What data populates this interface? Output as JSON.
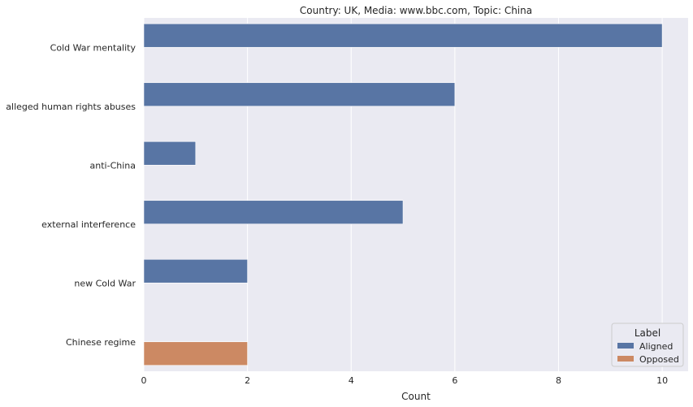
{
  "chart_data": {
    "type": "bar",
    "orientation": "horizontal",
    "title": "Country: UK, Media: www.bbc.com, Topic: China",
    "xlabel": "Count",
    "ylabel": "",
    "xlim": [
      0,
      10.5
    ],
    "xticks": [
      0,
      2,
      4,
      6,
      8,
      10
    ],
    "grid": true,
    "categories": [
      "Cold War mentality",
      "alleged human rights abuses",
      "anti-China",
      "external interference",
      "new Cold War",
      "Chinese regime"
    ],
    "series": [
      {
        "name": "Aligned",
        "color": "#5875a4",
        "values": [
          10,
          6,
          1,
          5,
          2,
          0
        ]
      },
      {
        "name": "Opposed",
        "color": "#cc8963",
        "values": [
          0,
          0,
          0,
          0,
          0,
          2
        ]
      }
    ],
    "legend": {
      "title": "Label",
      "position": "bottom-right",
      "entries": [
        "Aligned",
        "Opposed"
      ]
    },
    "colors": {
      "background": "#eaeaf2",
      "grid": "#ffffff"
    }
  }
}
